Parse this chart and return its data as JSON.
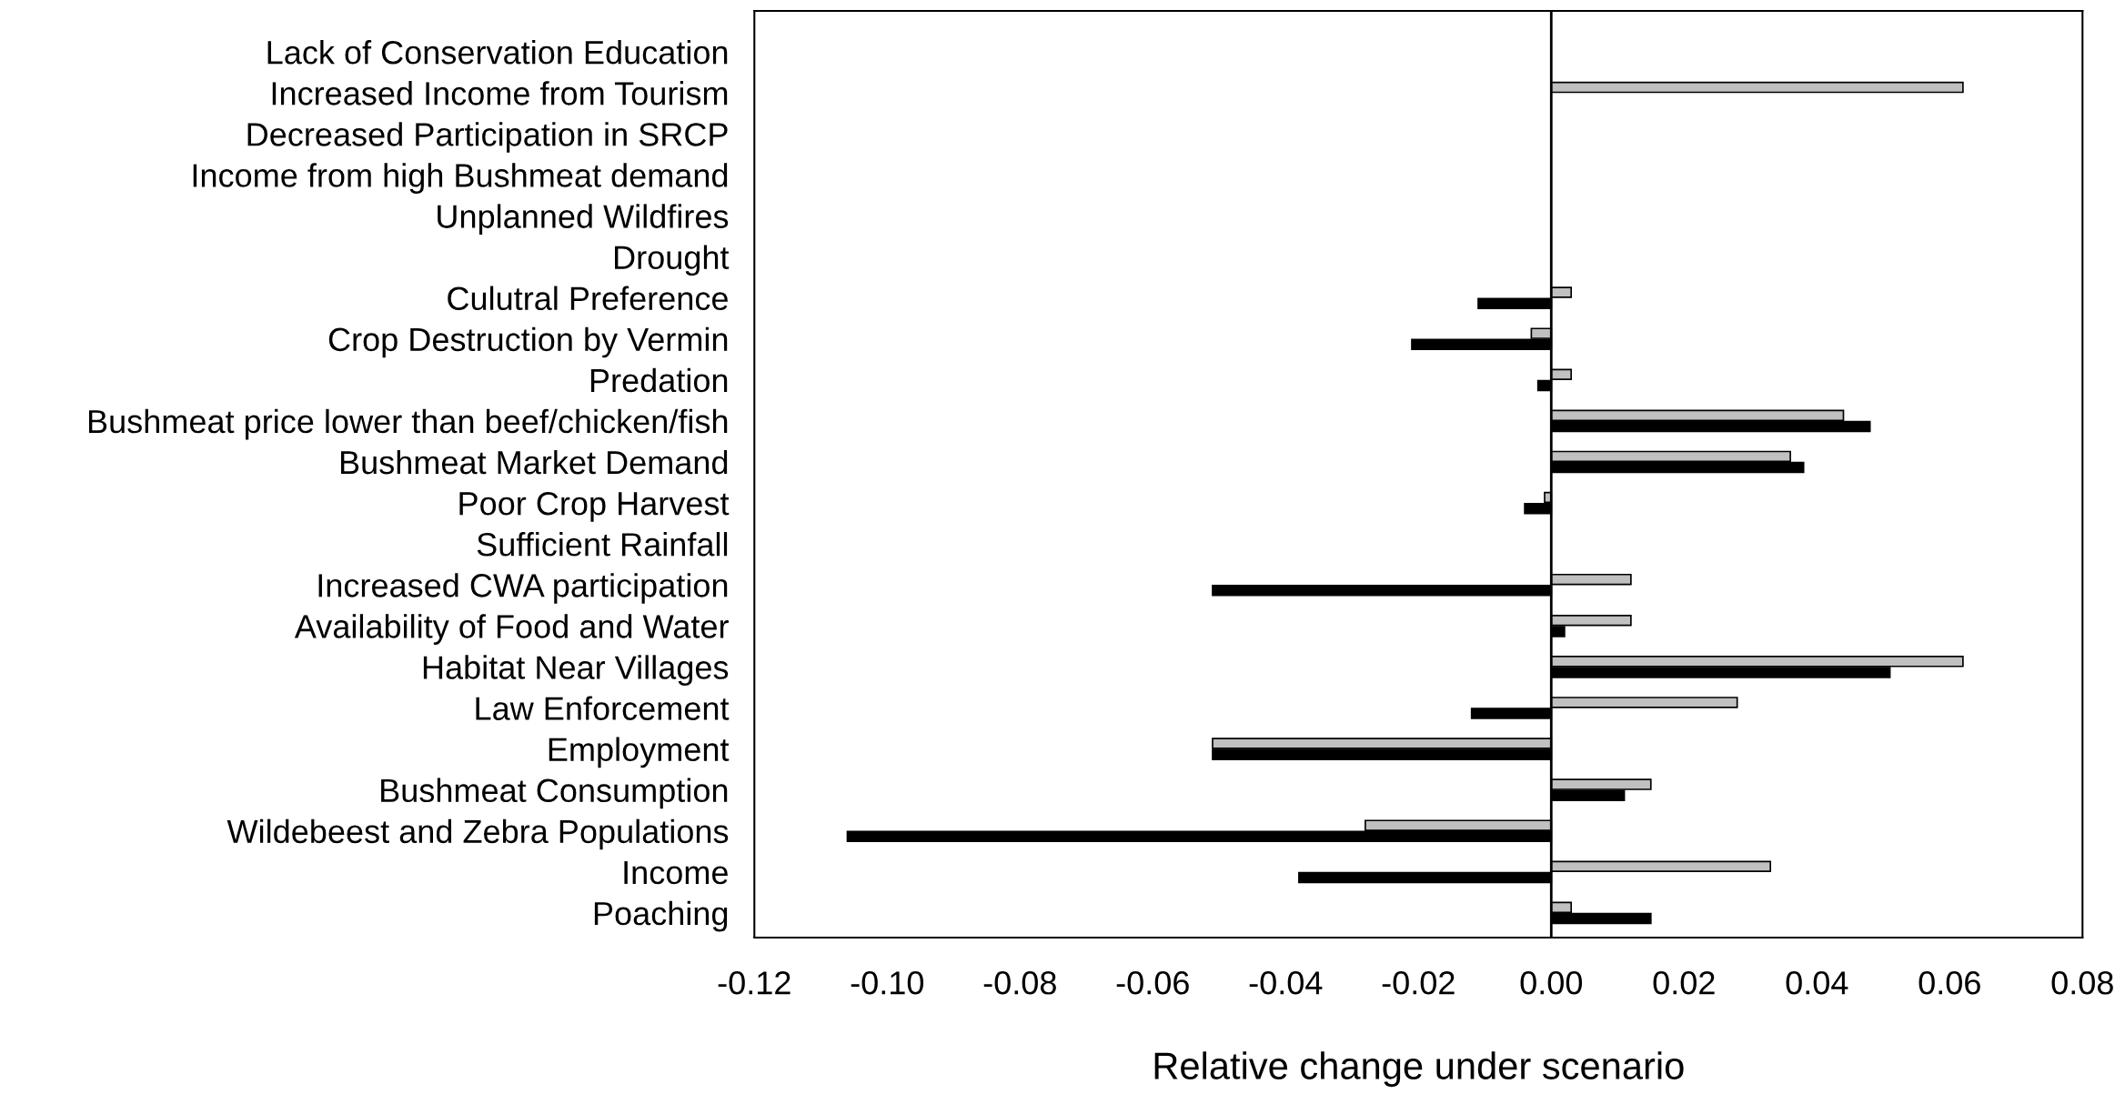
{
  "chart_data": {
    "type": "bar",
    "orientation": "horizontal",
    "xlabel": "Relative change under scenario",
    "categories": [
      "Lack of Conservation Education",
      "Increased Income from Tourism",
      "Decreased Participation in SRCP",
      "Income from high Bushmeat demand",
      "Unplanned Wildfires",
      "Drought",
      "Culutral Preference",
      "Crop Destruction by Vermin",
      "Predation",
      "Bushmeat price lower than beef/chicken/fish",
      "Bushmeat Market Demand",
      "Poor Crop Harvest",
      "Sufficient Rainfall",
      "Increased CWA participation",
      "Availability of Food and Water",
      "Habitat Near Villages",
      "Law Enforcement",
      "Employment",
      "Bushmeat Consumption",
      "Wildebeest and Zebra Populations",
      "Income",
      "Poaching"
    ],
    "series": [
      {
        "color": "#c0c0c0",
        "values": [
          null,
          0.062,
          null,
          null,
          null,
          null,
          0.003,
          -0.003,
          0.003,
          0.044,
          0.036,
          -0.001,
          null,
          0.012,
          0.012,
          0.062,
          0.028,
          -0.051,
          0.015,
          -0.028,
          0.033,
          0.003
        ]
      },
      {
        "color": "#000000",
        "values": [
          null,
          null,
          null,
          null,
          null,
          null,
          -0.011,
          -0.021,
          -0.002,
          0.048,
          0.038,
          -0.004,
          null,
          -0.051,
          0.002,
          0.051,
          -0.012,
          -0.051,
          0.011,
          -0.106,
          -0.038,
          0.015
        ]
      }
    ],
    "xlim": [
      -0.12,
      0.08
    ],
    "xticks": [
      {
        "value": -0.12,
        "label": "-0.12"
      },
      {
        "value": -0.1,
        "label": "-0.10"
      },
      {
        "value": -0.08,
        "label": "-0.08"
      },
      {
        "value": -0.06,
        "label": "-0.06"
      },
      {
        "value": -0.04,
        "label": "-0.04"
      },
      {
        "value": -0.02,
        "label": "-0.02"
      },
      {
        "value": 0,
        "label": "0.00"
      },
      {
        "value": 0.02,
        "label": "0.02"
      },
      {
        "value": 0.04,
        "label": "0.04"
      },
      {
        "value": 0.06,
        "label": "0.06"
      },
      {
        "value": 0.08,
        "label": "0.08"
      }
    ],
    "ref_lines": [
      {
        "axis": "x",
        "value": 0,
        "color": "#000000"
      }
    ],
    "grid": false,
    "legend": false
  }
}
